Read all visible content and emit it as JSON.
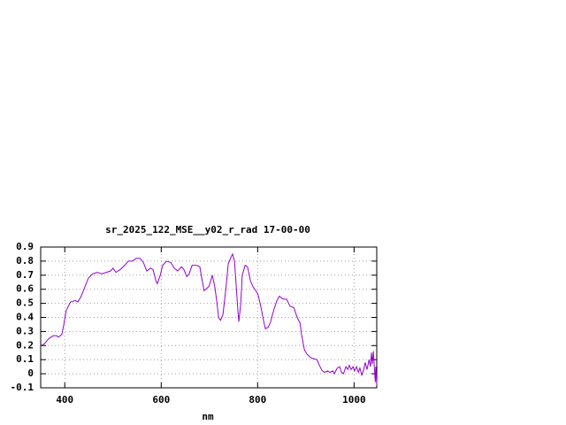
{
  "chart_data": {
    "type": "line",
    "title": "sr_2025_122_MSE__y02_r_rad 17-00-00",
    "x_label": "nm",
    "xlim": [
      350,
      1047
    ],
    "ylim": [
      -0.1,
      0.9
    ],
    "xticks": [
      400,
      600,
      800,
      1000
    ],
    "yticks": [
      -0.1,
      0,
      0.1,
      0.2,
      0.3,
      0.4,
      0.5,
      0.6,
      0.7,
      0.8,
      0.9
    ],
    "grid": true,
    "x": [
      350,
      357,
      367,
      376,
      383,
      387,
      394,
      398,
      403,
      412,
      422,
      427,
      434,
      442,
      449,
      458,
      467,
      477,
      486,
      495,
      500,
      506,
      515,
      524,
      532,
      541,
      548,
      556,
      563,
      570,
      578,
      583,
      589,
      592,
      598,
      603,
      611,
      620,
      627,
      634,
      642,
      647,
      653,
      658,
      664,
      673,
      680,
      684,
      689,
      699,
      706,
      711,
      715,
      719,
      723,
      728,
      734,
      739,
      745,
      748,
      752,
      756,
      759,
      761,
      765,
      768,
      774,
      779,
      785,
      790,
      798,
      801,
      807,
      812,
      816,
      822,
      827,
      834,
      840,
      845,
      853,
      860,
      867,
      875,
      882,
      888,
      891,
      897,
      902,
      908,
      913,
      923,
      928,
      934,
      939,
      945,
      950,
      956,
      959,
      965,
      970,
      974,
      978,
      983,
      987,
      990,
      994,
      998,
      1001,
      1005,
      1009,
      1012,
      1016,
      1020,
      1023,
      1027,
      1031,
      1034,
      1036,
      1038,
      1040,
      1044,
      1045,
      1047
    ],
    "series": [
      {
        "color": "#9400d3",
        "values": [
          0.2,
          0.21,
          0.25,
          0.27,
          0.27,
          0.26,
          0.28,
          0.35,
          0.45,
          0.51,
          0.52,
          0.51,
          0.55,
          0.62,
          0.68,
          0.71,
          0.72,
          0.71,
          0.72,
          0.73,
          0.75,
          0.72,
          0.74,
          0.77,
          0.8,
          0.8,
          0.82,
          0.82,
          0.79,
          0.73,
          0.75,
          0.74,
          0.66,
          0.64,
          0.7,
          0.77,
          0.8,
          0.79,
          0.75,
          0.73,
          0.76,
          0.74,
          0.69,
          0.71,
          0.77,
          0.77,
          0.76,
          0.68,
          0.59,
          0.62,
          0.7,
          0.62,
          0.52,
          0.4,
          0.38,
          0.42,
          0.6,
          0.78,
          0.83,
          0.85,
          0.8,
          0.6,
          0.45,
          0.37,
          0.5,
          0.7,
          0.77,
          0.76,
          0.66,
          0.62,
          0.58,
          0.56,
          0.47,
          0.38,
          0.32,
          0.33,
          0.37,
          0.46,
          0.52,
          0.55,
          0.53,
          0.53,
          0.48,
          0.47,
          0.4,
          0.36,
          0.28,
          0.17,
          0.14,
          0.12,
          0.11,
          0.1,
          0.06,
          0.02,
          0.01,
          0.02,
          0.01,
          0.02,
          0.0,
          0.04,
          0.05,
          0.01,
          0.0,
          0.05,
          0.03,
          0.06,
          0.03,
          0.05,
          0.02,
          0.05,
          0.01,
          0.04,
          -0.01,
          0.03,
          0.08,
          0.03,
          0.1,
          0.05,
          0.15,
          0.07,
          0.16,
          -0.06,
          0.05,
          -0.08
        ]
      }
    ]
  }
}
